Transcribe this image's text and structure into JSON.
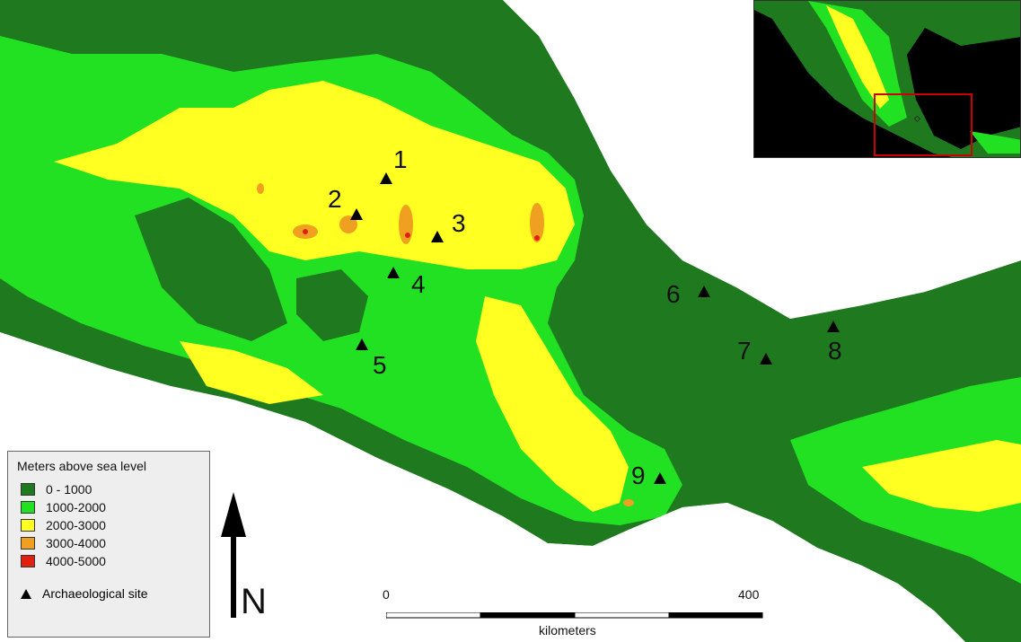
{
  "legend": {
    "title": "Meters above sea level",
    "items": [
      {
        "label": "0 - 1000",
        "color": "#1f7a1f"
      },
      {
        "label": "1000-2000",
        "color": "#22e022"
      },
      {
        "label": "2000-3000",
        "color": "#ffff22"
      },
      {
        "label": "3000-4000",
        "color": "#f0a020"
      },
      {
        "label": "4000-5000",
        "color": "#e02010"
      }
    ],
    "site_label": "Archaeological site"
  },
  "sites": [
    {
      "label": "1"
    },
    {
      "label": "2"
    },
    {
      "label": "3"
    },
    {
      "label": "4"
    },
    {
      "label": "5"
    },
    {
      "label": "6"
    },
    {
      "label": "7"
    },
    {
      "label": "8"
    },
    {
      "label": "9"
    }
  ],
  "north_label": "N",
  "scale": {
    "start": "0",
    "end": "400",
    "unit": "kilometers"
  },
  "colors": {
    "ocean": "#ffffff",
    "inset_ocean": "#000000",
    "inset_frame": "#cc0000"
  }
}
